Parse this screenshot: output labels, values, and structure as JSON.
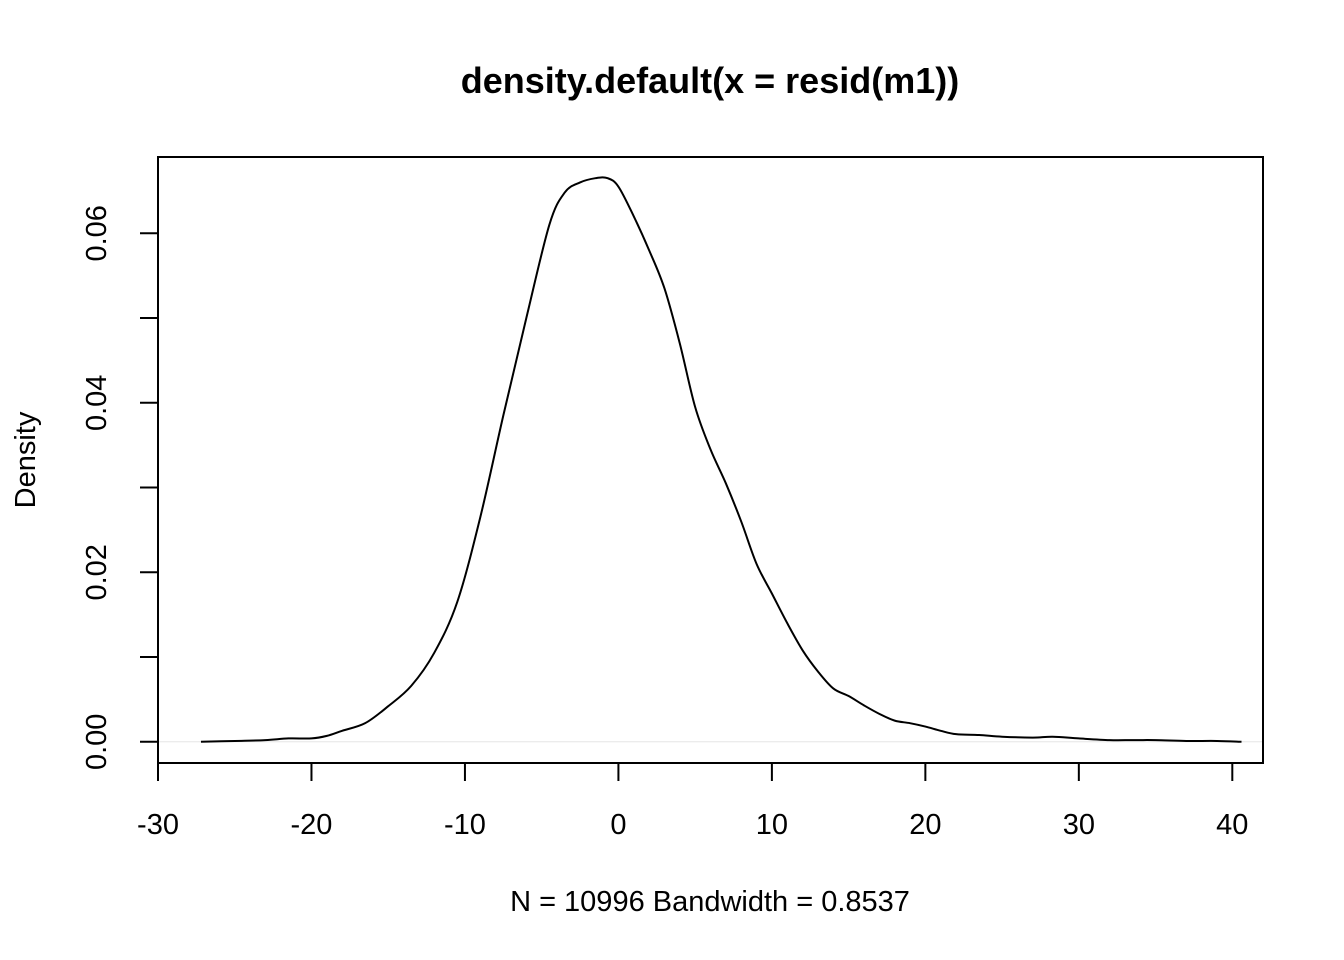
{
  "chart_data": {
    "type": "line",
    "title": "density.default(x = resid(m1))",
    "xlabel": "N = 10996   Bandwidth = 0.8537",
    "ylabel": "Density",
    "xlim": [
      -30,
      42
    ],
    "ylim": [
      -0.0025,
      0.069
    ],
    "x_ticks": [
      -30,
      -20,
      -10,
      0,
      10,
      20,
      30,
      40
    ],
    "x_tick_labels": [
      "-30",
      "-20",
      "-10",
      "0",
      "10",
      "20",
      "30",
      "40"
    ],
    "y_ticks": [
      0.0,
      0.01,
      0.02,
      0.03,
      0.04,
      0.05,
      0.06
    ],
    "y_tick_labels": [
      "0.00",
      "",
      "0.02",
      "",
      "0.04",
      "",
      "0.06"
    ],
    "grid": false,
    "series": [
      {
        "x": [
          -27.2,
          -25,
          -23,
          -21.5,
          -20,
          -19,
          -18,
          -16.5,
          -15,
          -13.5,
          -12,
          -10.5,
          -9,
          -7.5,
          -6,
          -4.5,
          -3.5,
          -2.5,
          -1.5,
          -0.7,
          0,
          1,
          2,
          3,
          4,
          5,
          6,
          7,
          8,
          9,
          10,
          11,
          12,
          13,
          14,
          15,
          16,
          17,
          18,
          19,
          20,
          21,
          22,
          23.5,
          25,
          27,
          28.3,
          30,
          32,
          33.5,
          35,
          37,
          39,
          40.6
        ],
        "y": [
          0.0,
          0.0001,
          0.0002,
          0.0004,
          0.0004,
          0.0007,
          0.0013,
          0.0022,
          0.0042,
          0.0066,
          0.0105,
          0.0165,
          0.0265,
          0.0385,
          0.05,
          0.061,
          0.0648,
          0.066,
          0.0665,
          0.0665,
          0.0655,
          0.062,
          0.058,
          0.0535,
          0.047,
          0.0395,
          0.0345,
          0.0305,
          0.026,
          0.021,
          0.0175,
          0.014,
          0.0108,
          0.0083,
          0.0063,
          0.0054,
          0.0043,
          0.0033,
          0.0025,
          0.0022,
          0.0018,
          0.0013,
          0.0009,
          0.0008,
          0.0006,
          0.0005,
          0.0006,
          0.0004,
          0.0002,
          0.0002,
          0.0002,
          0.0001,
          0.0001,
          0.0
        ]
      }
    ]
  }
}
